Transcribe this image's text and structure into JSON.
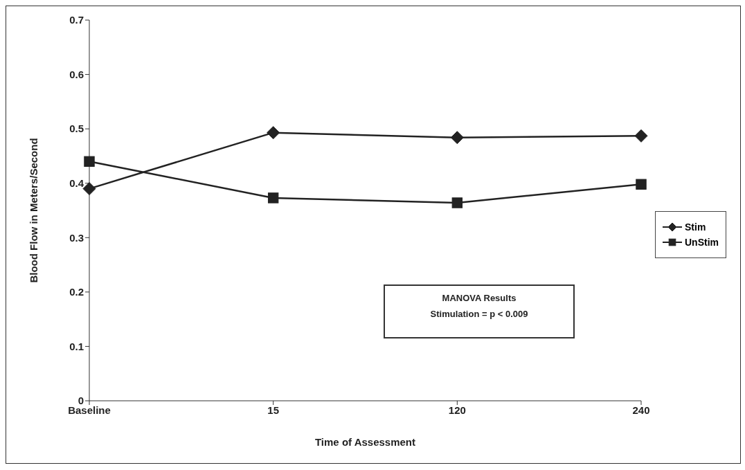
{
  "chart_data": {
    "type": "line",
    "xlabel": "Time of Assessment",
    "ylabel": "Blood Flow in Meters/Second",
    "categories": [
      "Baseline",
      "15",
      "120",
      "240"
    ],
    "series": [
      {
        "name": "Stim",
        "color": "#222222",
        "marker": "diamond",
        "values": [
          0.39,
          0.493,
          0.484,
          0.487
        ]
      },
      {
        "name": "UnStim",
        "color": "#222222",
        "marker": "square",
        "values": [
          0.44,
          0.373,
          0.364,
          0.398
        ]
      }
    ],
    "ylim": [
      0,
      0.7
    ],
    "yticks": [
      0,
      0.1,
      0.2,
      0.3,
      0.4,
      0.5,
      0.6,
      0.7
    ],
    "grid": false,
    "legend": "right",
    "line_style": "solid",
    "annotations": [
      "MANOVA Results",
      "Stimulation = p < 0.009"
    ]
  }
}
